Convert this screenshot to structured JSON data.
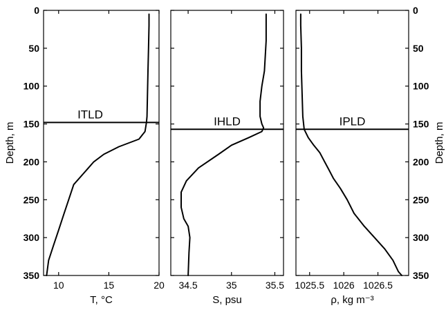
{
  "depth_axis": {
    "label": "Depth, m",
    "ticks": [
      "0",
      "50",
      "100",
      "150",
      "200",
      "250",
      "300",
      "350"
    ],
    "range": [
      0,
      350
    ],
    "inverted": true
  },
  "chart_data": [
    {
      "type": "line",
      "xlabel": "T, °C",
      "ylabel": "Depth, m",
      "xlim": [
        8.5,
        20
      ],
      "ylim": [
        350,
        0
      ],
      "xticks": [
        "10",
        "15",
        "20"
      ],
      "xtick_values": [
        10,
        15,
        20
      ],
      "annotation": {
        "text": "ITLD",
        "depth": 148
      },
      "series": [
        {
          "x": [
            19.0,
            19.0,
            18.95,
            18.9,
            18.85,
            18.8,
            18.75,
            18.6,
            18.0,
            16.0,
            14.5,
            13.5,
            12.5,
            11.5,
            11.0,
            10.5,
            10.0,
            9.5,
            9.0,
            8.8
          ],
          "y": [
            5,
            20,
            50,
            80,
            110,
            140,
            148,
            160,
            170,
            180,
            190,
            200,
            215,
            230,
            250,
            270,
            290,
            310,
            330,
            350
          ]
        }
      ]
    },
    {
      "type": "line",
      "xlabel": "S, psu",
      "ylabel": "Depth, m",
      "xlim": [
        34.3,
        35.6
      ],
      "ylim": [
        350,
        0
      ],
      "xticks": [
        "34.5",
        "35",
        "35.5"
      ],
      "xtick_values": [
        34.5,
        35,
        35.5
      ],
      "annotation": {
        "text": "IHLD",
        "depth": 157
      },
      "series": [
        {
          "x": [
            35.4,
            35.4,
            35.38,
            35.35,
            35.33,
            35.33,
            35.35,
            35.37,
            35.35,
            35.2,
            35.0,
            34.85,
            34.62,
            34.48,
            34.42,
            34.42,
            34.45,
            34.5,
            34.52,
            34.51,
            34.5
          ],
          "y": [
            5,
            40,
            80,
            100,
            120,
            140,
            150,
            155,
            160,
            168,
            178,
            190,
            208,
            225,
            240,
            260,
            275,
            285,
            300,
            320,
            350
          ]
        }
      ]
    },
    {
      "type": "line",
      "xlabel": "ρ, kg m⁻³",
      "ylabel": "Depth, m",
      "xlim": [
        1025.3,
        1026.95
      ],
      "ylim": [
        350,
        0
      ],
      "xticks": [
        "1025.5",
        "1026",
        "1026.5"
      ],
      "xtick_values": [
        1025.5,
        1026,
        1026.5
      ],
      "annotation": {
        "text": "IPLD",
        "depth": 157
      },
      "series": [
        {
          "x": [
            1025.37,
            1025.37,
            1025.38,
            1025.38,
            1025.39,
            1025.4,
            1025.42,
            1025.48,
            1025.56,
            1025.65,
            1025.72,
            1025.78,
            1025.85,
            1025.95,
            1026.05,
            1026.15,
            1026.3,
            1026.45,
            1026.6,
            1026.72,
            1026.8,
            1026.85
          ],
          "y": [
            5,
            20,
            50,
            80,
            110,
            140,
            157,
            168,
            178,
            188,
            200,
            210,
            222,
            235,
            250,
            268,
            285,
            300,
            315,
            330,
            345,
            350
          ]
        }
      ]
    }
  ]
}
